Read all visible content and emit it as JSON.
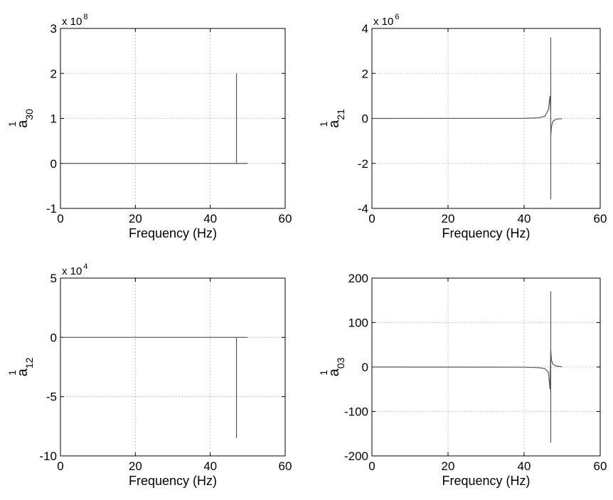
{
  "chart_data": [
    {
      "type": "line",
      "xlabel": "Frequency (Hz)",
      "ylabel": {
        "main": "a",
        "sup": "1",
        "sub": "30"
      },
      "exponent": {
        "base": "x 10",
        "power": "8"
      },
      "xlim": [
        0,
        60
      ],
      "ylim": [
        -1,
        3
      ],
      "xticks": [
        "0",
        "20",
        "40",
        "60"
      ],
      "yticks": [
        "-1",
        "0",
        "1",
        "2",
        "3"
      ],
      "ytick_values": [
        -1,
        0,
        1,
        2,
        3
      ],
      "grid": true,
      "series": [
        {
          "x": [
            0,
            47,
            47,
            47,
            47,
            50
          ],
          "y": [
            0,
            0,
            2,
            2,
            0,
            0
          ]
        }
      ]
    },
    {
      "type": "line",
      "xlabel": "Frequency (Hz)",
      "ylabel": {
        "main": "a",
        "sup": "1",
        "sub": "21"
      },
      "exponent": {
        "base": "x 10",
        "power": "6"
      },
      "xlim": [
        0,
        60
      ],
      "ylim": [
        -4,
        4
      ],
      "xticks": [
        "0",
        "20",
        "40",
        "60"
      ],
      "yticks": [
        "-4",
        "-2",
        "0",
        "2",
        "4"
      ],
      "ytick_values": [
        -4,
        -2,
        0,
        2,
        4
      ],
      "grid": true,
      "series": [
        {
          "x": [
            0,
            40,
            44,
            45.5,
            46.4,
            46.8,
            47.0,
            47.0,
            47.0,
            47.0,
            47.2,
            47.6,
            48.5,
            50
          ],
          "y": [
            0,
            0.005,
            0.03,
            0.1,
            0.4,
            1.0,
            0.2,
            3.6,
            -3.6,
            -0.8,
            -0.35,
            -0.12,
            -0.03,
            -0.01
          ]
        }
      ]
    },
    {
      "type": "line",
      "xlabel": "Frequency (Hz)",
      "ylabel": {
        "main": "a",
        "sup": "1",
        "sub": "12"
      },
      "exponent": {
        "base": "x 10",
        "power": "4"
      },
      "xlim": [
        0,
        60
      ],
      "ylim": [
        -10,
        5
      ],
      "xticks": [
        "0",
        "20",
        "40",
        "60"
      ],
      "yticks": [
        "-10",
        "-5",
        "0",
        "5"
      ],
      "ytick_values": [
        -10,
        -5,
        0,
        5
      ],
      "grid": true,
      "series": [
        {
          "x": [
            0,
            47,
            47,
            47,
            47,
            50
          ],
          "y": [
            0,
            0,
            -8.5,
            -8.5,
            0,
            0
          ]
        }
      ]
    },
    {
      "type": "line",
      "xlabel": "Frequency (Hz)",
      "ylabel": {
        "main": "a",
        "sup": "1",
        "sub": "03"
      },
      "exponent": null,
      "xlim": [
        0,
        60
      ],
      "ylim": [
        -200,
        200
      ],
      "xticks": [
        "0",
        "20",
        "40",
        "60"
      ],
      "yticks": [
        "-200",
        "-100",
        "0",
        "100",
        "200"
      ],
      "ytick_values": [
        -200,
        -100,
        0,
        100,
        200
      ],
      "grid": true,
      "series": [
        {
          "x": [
            0,
            40,
            44,
            45.5,
            46.4,
            46.8,
            47.0,
            47.0,
            47.0,
            47.0,
            47.2,
            47.6,
            48.5,
            50
          ],
          "y": [
            0,
            -0.3,
            -1.5,
            -4,
            -12,
            -50,
            40,
            170,
            -170,
            40,
            15,
            6,
            2,
            0.5
          ]
        }
      ]
    }
  ]
}
